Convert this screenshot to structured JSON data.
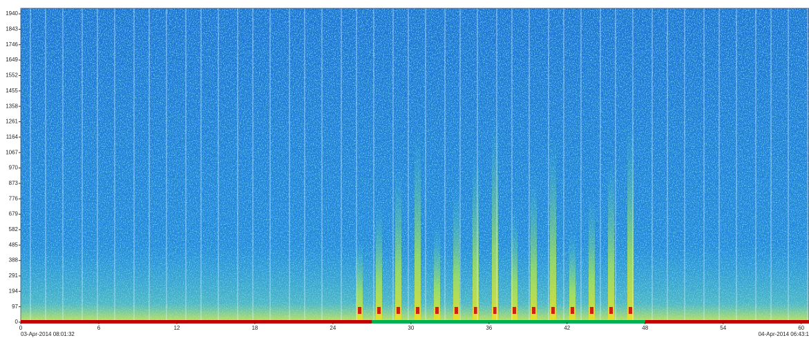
{
  "chart_data": {
    "type": "spectrogram",
    "xlim": [
      0,
      60.6
    ],
    "xticks": [
      0,
      6,
      12,
      18,
      24,
      30,
      36,
      42,
      48,
      54,
      60
    ],
    "ylim": [
      0,
      1975
    ],
    "yticks": [
      0,
      97,
      194,
      291,
      388,
      485,
      582,
      679,
      776,
      873,
      970,
      1067,
      1164,
      1261,
      1358,
      1455,
      1552,
      1649,
      1746,
      1843,
      1940
    ],
    "start_label": "03-Apr-2014 08:01:32",
    "end_label": "04-Apr-2014 06:43:1",
    "segments": [
      {
        "start": 0,
        "end": 27,
        "color": "#c00000"
      },
      {
        "start": 27,
        "end": 48,
        "color": "#00b050"
      },
      {
        "start": 48,
        "end": 60.6,
        "color": "#c00000"
      }
    ]
  }
}
